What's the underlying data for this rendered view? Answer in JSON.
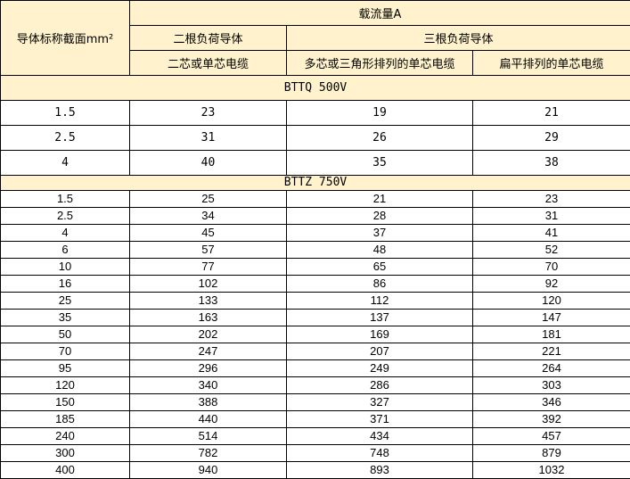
{
  "header": {
    "col0": "导体标称截面mm²",
    "group": "载流量A",
    "two_conductors": "二根负荷导体",
    "three_conductors": "三根负荷导体",
    "sub1": "二芯或单芯电缆",
    "sub2": "多芯或三角形排列的单芯电缆",
    "sub3": "扁平排列的单芯电缆"
  },
  "sections": [
    {
      "title": "BTTQ 500V",
      "rows": [
        [
          "1.5",
          "23",
          "19",
          "21"
        ],
        [
          "2.5",
          "31",
          "26",
          "29"
        ],
        [
          "4",
          "40",
          "35",
          "38"
        ]
      ]
    },
    {
      "title": "BTTZ 750V",
      "rows": [
        [
          "1.5",
          "25",
          "21",
          "23"
        ],
        [
          "2.5",
          "34",
          "28",
          "31"
        ],
        [
          "4",
          "45",
          "37",
          "41"
        ],
        [
          "6",
          "57",
          "48",
          "52"
        ],
        [
          "10",
          "77",
          "65",
          "70"
        ],
        [
          "16",
          "102",
          "86",
          "92"
        ],
        [
          "25",
          "133",
          "112",
          "120"
        ],
        [
          "35",
          "163",
          "137",
          "147"
        ],
        [
          "50",
          "202",
          "169",
          "181"
        ],
        [
          "70",
          "247",
          "207",
          "221"
        ],
        [
          "95",
          "296",
          "249",
          "264"
        ],
        [
          "120",
          "340",
          "286",
          "303"
        ],
        [
          "150",
          "388",
          "327",
          "346"
        ],
        [
          "185",
          "440",
          "371",
          "392"
        ],
        [
          "240",
          "514",
          "434",
          "457"
        ],
        [
          "300",
          "782",
          "748",
          "879"
        ],
        [
          "400",
          "940",
          "893",
          "1032"
        ]
      ]
    }
  ]
}
